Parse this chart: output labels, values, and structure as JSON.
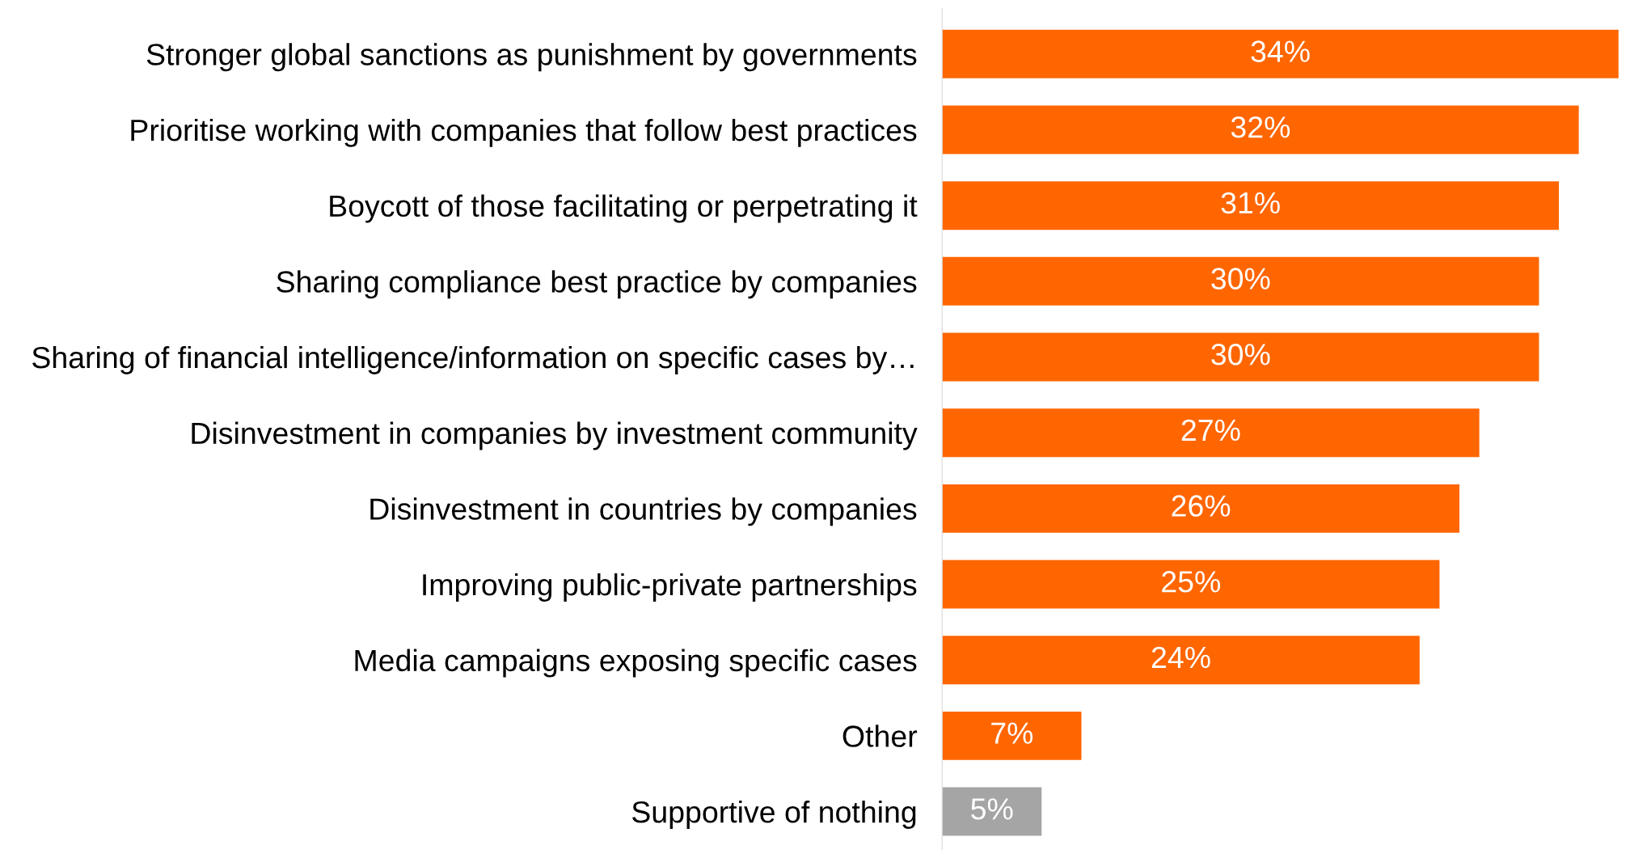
{
  "chart_data": {
    "type": "bar",
    "orientation": "horizontal",
    "data_labels": true,
    "value_labels": [
      "34%",
      "32%",
      "31%",
      "30%",
      "30%",
      "27%",
      "26%",
      "25%",
      "24%",
      "7%",
      "5%"
    ],
    "categories": [
      "Stronger global sanctions as punishment by governments",
      "Prioritise working with companies that follow best practices",
      "Boycott of those facilitating or perpetrating it",
      "Sharing compliance best practice by companies",
      "Sharing of financial intelligence/information on specific cases by…",
      "Disinvestment in companies by investment community",
      "Disinvestment in countries by companies",
      "Improving public-private partnerships",
      "Media campaigns exposing specific cases",
      "Other",
      "Supportive of nothing"
    ],
    "values": [
      34,
      32,
      31,
      30,
      30,
      27,
      26,
      25,
      24,
      7,
      5
    ],
    "colors": [
      "#ff6600",
      "#ff6600",
      "#ff6600",
      "#ff6600",
      "#ff6600",
      "#ff6600",
      "#ff6600",
      "#ff6600",
      "#ff6600",
      "#ff6600",
      "#a5a5a5"
    ],
    "grid": false,
    "legend": false
  }
}
